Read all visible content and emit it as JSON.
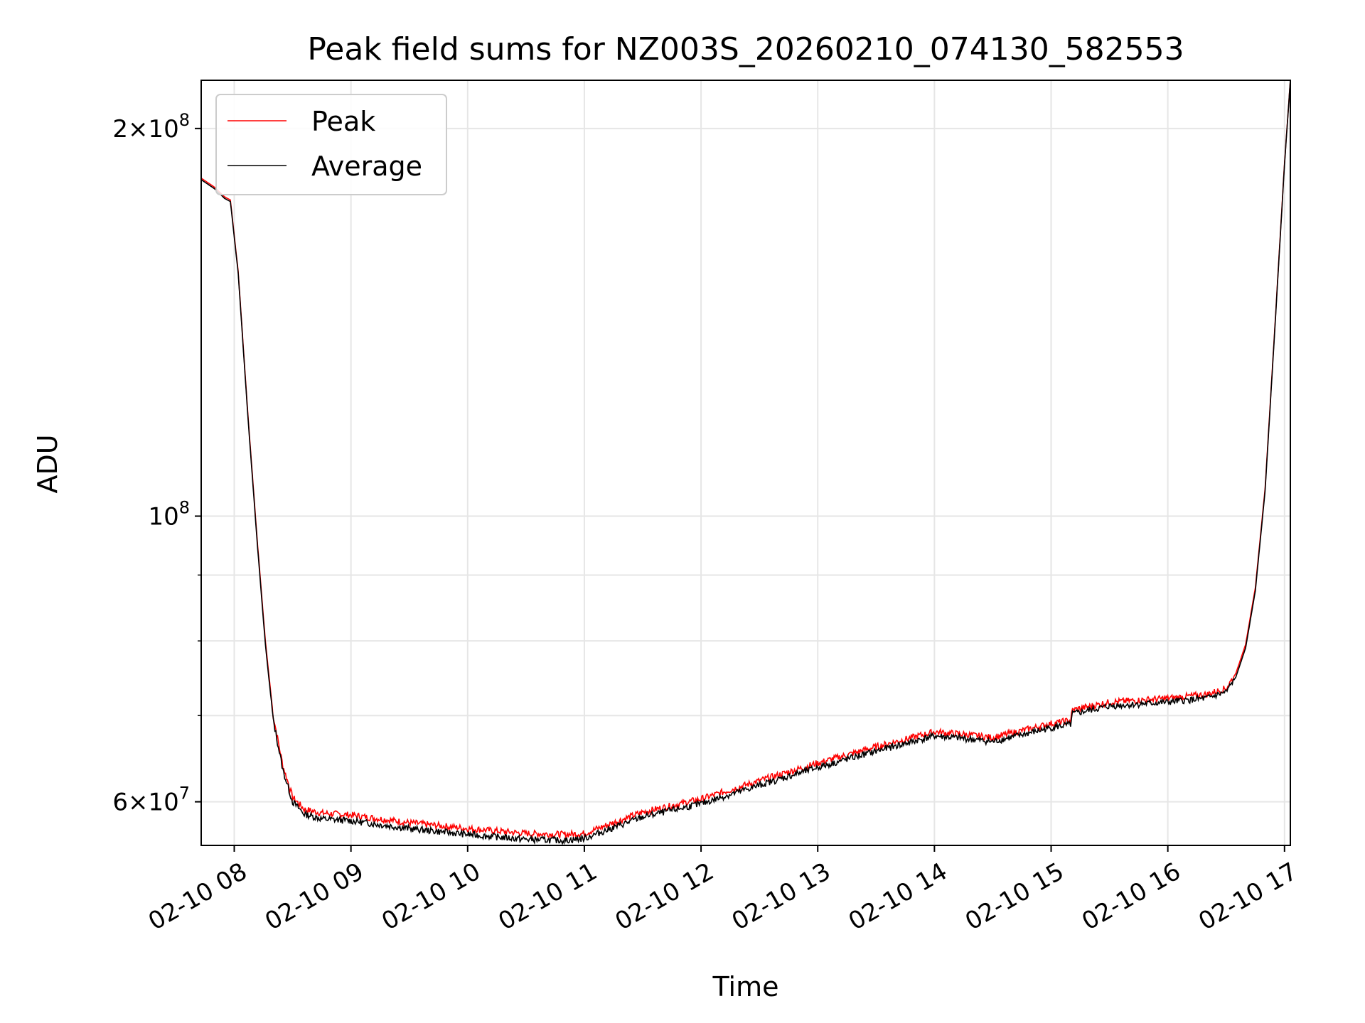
{
  "chart_data": {
    "type": "line",
    "title": "Peak field sums for NZ003S_20260210_074130_582553",
    "xlabel": "Time",
    "ylabel": "ADU",
    "x_ticks": [
      "02-10 08",
      "02-10 09",
      "02-10 10",
      "02-10 11",
      "02-10 12",
      "02-10 13",
      "02-10 14",
      "02-10 15",
      "02-10 16",
      "02-10 17"
    ],
    "y_ticks": [
      {
        "value": 60000000,
        "mant": "6",
        "exp": "7"
      },
      {
        "value": 100000000,
        "mant": "",
        "exp": "8"
      },
      {
        "value": 200000000,
        "mant": "2",
        "exp": "8"
      }
    ],
    "y_scale": "log",
    "xlim": [
      "2026-02-10 07:43",
      "2026-02-10 17:03"
    ],
    "ylim": [
      55500000,
      218000000
    ],
    "grid": true,
    "legend": "top-left",
    "colors": {
      "Peak": "#ff0000",
      "Average": "#000000",
      "grid": "#e6e6e6"
    },
    "series": [
      {
        "name": "Peak",
        "x": [
          "2026-02-10 07:43",
          "2026-02-10 07:50",
          "2026-02-10 07:55",
          "2026-02-10 07:58",
          "2026-02-10 08:02",
          "2026-02-10 08:07",
          "2026-02-10 08:12",
          "2026-02-10 08:16",
          "2026-02-10 08:20",
          "2026-02-10 08:25",
          "2026-02-10 08:30",
          "2026-02-10 08:36",
          "2026-02-10 08:45",
          "2026-02-10 09:00",
          "2026-02-10 09:30",
          "2026-02-10 10:00",
          "2026-02-10 10:30",
          "2026-02-10 10:50",
          "2026-02-10 11:00",
          "2026-02-10 11:15",
          "2026-02-10 11:30",
          "2026-02-10 12:00",
          "2026-02-10 12:30",
          "2026-02-10 13:00",
          "2026-02-10 13:30",
          "2026-02-10 14:00",
          "2026-02-10 14:15",
          "2026-02-10 14:30",
          "2026-02-10 15:00",
          "2026-02-10 15:10",
          "2026-02-10 15:11",
          "2026-02-10 15:30",
          "2026-02-10 16:00",
          "2026-02-10 16:20",
          "2026-02-10 16:30",
          "2026-02-10 16:35",
          "2026-02-10 16:40",
          "2026-02-10 16:45",
          "2026-02-10 16:50",
          "2026-02-10 16:55",
          "2026-02-10 17:00",
          "2026-02-10 17:03"
        ],
        "y": [
          183000000,
          180000000,
          177000000,
          176000000,
          155000000,
          120000000,
          95000000,
          80000000,
          70000000,
          64000000,
          60500000,
          59200000,
          58800000,
          58600000,
          57800000,
          57200000,
          56700000,
          56600000,
          56700000,
          57800000,
          58900000,
          60300000,
          62300000,
          64300000,
          66200000,
          68000000,
          67700000,
          67300000,
          69000000,
          69400000,
          70700000,
          71700000,
          72200000,
          72700000,
          73500000,
          75500000,
          79500000,
          88000000,
          105000000,
          140000000,
          188000000,
          218000000
        ]
      },
      {
        "name": "Average",
        "x": [
          "2026-02-10 07:43",
          "2026-02-10 07:50",
          "2026-02-10 07:55",
          "2026-02-10 07:58",
          "2026-02-10 08:02",
          "2026-02-10 08:07",
          "2026-02-10 08:12",
          "2026-02-10 08:16",
          "2026-02-10 08:20",
          "2026-02-10 08:25",
          "2026-02-10 08:30",
          "2026-02-10 08:36",
          "2026-02-10 08:45",
          "2026-02-10 09:00",
          "2026-02-10 09:30",
          "2026-02-10 10:00",
          "2026-02-10 10:30",
          "2026-02-10 10:50",
          "2026-02-10 11:00",
          "2026-02-10 11:15",
          "2026-02-10 11:30",
          "2026-02-10 12:00",
          "2026-02-10 12:30",
          "2026-02-10 13:00",
          "2026-02-10 13:30",
          "2026-02-10 14:00",
          "2026-02-10 14:15",
          "2026-02-10 14:30",
          "2026-02-10 15:00",
          "2026-02-10 15:10",
          "2026-02-10 15:11",
          "2026-02-10 15:30",
          "2026-02-10 16:00",
          "2026-02-10 16:20",
          "2026-02-10 16:30",
          "2026-02-10 16:35",
          "2026-02-10 16:40",
          "2026-02-10 16:45",
          "2026-02-10 16:50",
          "2026-02-10 16:55",
          "2026-02-10 17:00",
          "2026-02-10 17:03"
        ],
        "y": [
          182500000,
          179500000,
          176500000,
          175500000,
          154500000,
          119500000,
          94500000,
          79500000,
          69500000,
          63500000,
          60000000,
          58700000,
          58200000,
          58000000,
          57200000,
          56600000,
          56100000,
          56000000,
          56200000,
          57300000,
          58400000,
          59800000,
          61800000,
          63800000,
          65700000,
          67500000,
          67200000,
          66800000,
          68500000,
          68900000,
          70200000,
          71200000,
          71700000,
          72200000,
          73000000,
          75000000,
          79000000,
          87500000,
          104500000,
          139500000,
          187500000,
          218000000
        ]
      }
    ]
  }
}
